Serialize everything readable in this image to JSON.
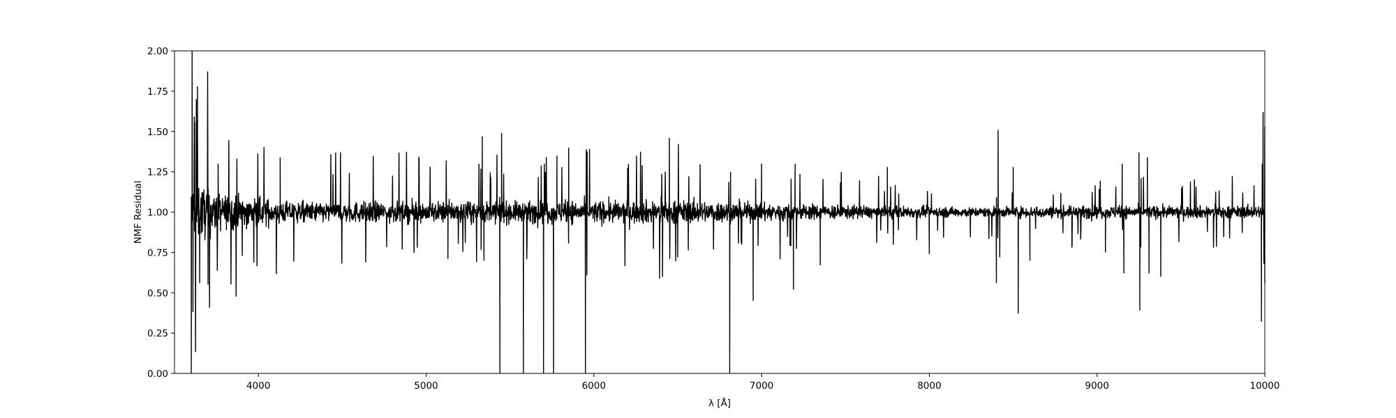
{
  "chart_data": {
    "type": "line",
    "title": "",
    "xlabel": "λ [Å]",
    "ylabel": "NMF Residual",
    "xlim": [
      3500,
      10000
    ],
    "ylim": [
      0.0,
      2.0
    ],
    "xticks": [
      4000,
      5000,
      6000,
      7000,
      8000,
      9000,
      10000
    ],
    "xtick_labels": [
      "4000",
      "5000",
      "6000",
      "7000",
      "8000",
      "9000",
      "10000"
    ],
    "yticks": [
      0.0,
      0.25,
      0.5,
      0.75,
      1.0,
      1.25,
      1.5,
      1.75,
      2.0
    ],
    "ytick_labels": [
      "0.00",
      "0.25",
      "0.50",
      "0.75",
      "1.00",
      "1.25",
      "1.50",
      "1.75",
      "2.00"
    ],
    "grid": false,
    "line_color": "#000000",
    "series": [
      {
        "x_start": 3600,
        "x_end": 10000,
        "baseline": 1.0,
        "noise_envelope": [
          [
            3600,
            0.45
          ],
          [
            3800,
            0.25
          ],
          [
            4200,
            0.15
          ],
          [
            5300,
            0.15
          ],
          [
            6500,
            0.17
          ],
          [
            7500,
            0.1
          ],
          [
            8300,
            0.07
          ],
          [
            8800,
            0.09
          ],
          [
            10000,
            0.09
          ]
        ],
        "spikes": [
          [
            3600,
            0.0
          ],
          [
            3605,
            2.0
          ],
          [
            3610,
            0.38
          ],
          [
            3620,
            1.56
          ],
          [
            3625,
            0.46
          ],
          [
            3630,
            1.7
          ],
          [
            3650,
            0.56
          ],
          [
            3700,
            0.55
          ],
          [
            3760,
            1.3
          ],
          [
            4130,
            1.34
          ],
          [
            5130,
            0.71
          ],
          [
            5335,
            1.47
          ],
          [
            5345,
            0.7
          ],
          [
            5440,
            0.0
          ],
          [
            5450,
            1.49
          ],
          [
            5580,
            0.0
          ],
          [
            5700,
            0.0
          ],
          [
            5705,
            1.3
          ],
          [
            5760,
            0.0
          ],
          [
            5780,
            1.35
          ],
          [
            5850,
            1.4
          ],
          [
            5950,
            0.0
          ],
          [
            5955,
            1.39
          ],
          [
            6450,
            1.46
          ],
          [
            6500,
            0.72
          ],
          [
            6810,
            0.0
          ],
          [
            6815,
            1.25
          ],
          [
            6950,
            0.45
          ],
          [
            7000,
            1.3
          ],
          [
            7190,
            0.52
          ],
          [
            7200,
            1.3
          ],
          [
            7350,
            0.67
          ],
          [
            7750,
            1.28
          ],
          [
            8000,
            0.74
          ],
          [
            8400,
            0.56
          ],
          [
            8410,
            1.51
          ],
          [
            8420,
            0.72
          ],
          [
            8500,
            1.28
          ],
          [
            8530,
            0.37
          ],
          [
            8600,
            0.7
          ],
          [
            8850,
            0.78
          ],
          [
            9050,
            0.75
          ],
          [
            9150,
            1.3
          ],
          [
            9160,
            0.62
          ],
          [
            9250,
            1.37
          ],
          [
            9255,
            0.39
          ],
          [
            9300,
            1.34
          ],
          [
            9310,
            0.62
          ],
          [
            9380,
            0.6
          ],
          [
            9980,
            0.32
          ],
          [
            9985,
            1.3
          ],
          [
            9990,
            1.62
          ],
          [
            9995,
            0.68
          ],
          [
            10000,
            1.53
          ],
          [
            10002,
            0.56
          ]
        ]
      }
    ]
  }
}
